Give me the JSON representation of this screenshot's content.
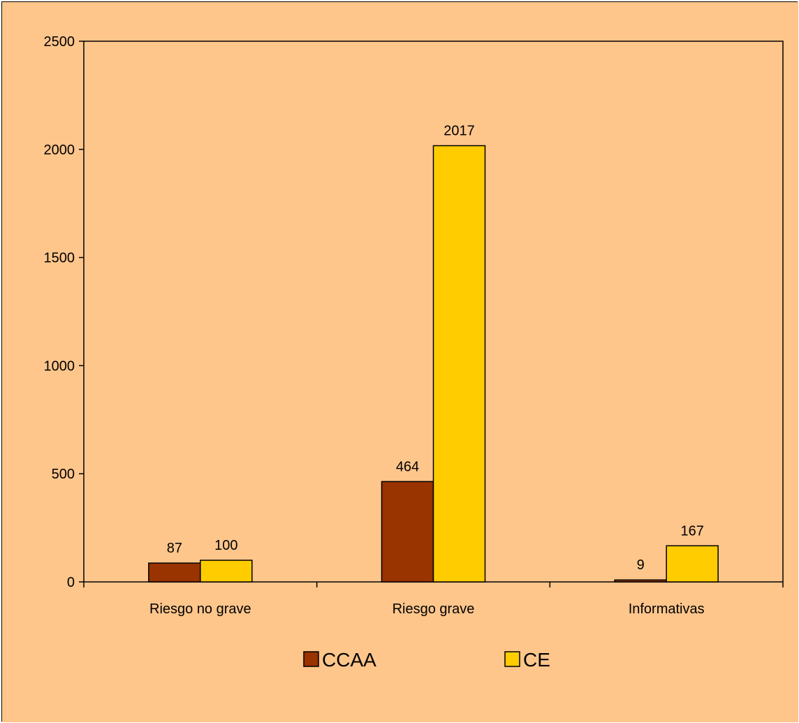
{
  "colors": {
    "chart_background": "#FFC68C",
    "plot_background": "#FFC68C",
    "series_ccaa": "#993300",
    "series_ce": "#FFCC00",
    "axis": "#000000"
  },
  "chart_data": {
    "type": "bar",
    "title": "",
    "xlabel": "",
    "ylabel": "",
    "categories": [
      "Riesgo no grave",
      "Riesgo grave",
      "Informativas"
    ],
    "series": [
      {
        "name": "CCAA",
        "values": [
          87,
          464,
          9
        ],
        "color": "#993300"
      },
      {
        "name": "CE",
        "values": [
          100,
          2017,
          167
        ],
        "color": "#FFCC00"
      }
    ],
    "ylim": [
      0,
      2500
    ],
    "yticks": [
      0,
      500,
      1000,
      1500,
      2000,
      2500
    ],
    "grid": false,
    "legend_position": "bottom",
    "data_labels": true
  }
}
